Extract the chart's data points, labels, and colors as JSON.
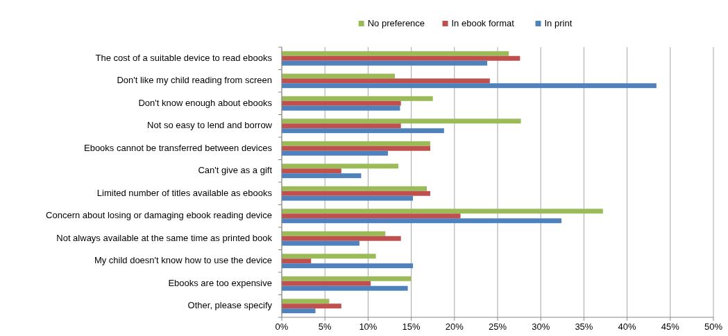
{
  "chart_data": {
    "type": "bar",
    "orientation": "horizontal",
    "categories": [
      "The cost of a suitable device to read ebooks",
      "Don't like my child reading from screen",
      "Don't know enough about ebooks",
      "Not so easy to lend and borrow",
      "Ebooks cannot be transferred between devices",
      "Can't give as a gift",
      "Limited number of titles available as ebooks",
      "Concern about losing or damaging ebook reading device",
      "Not always available at the same time as printed book",
      "My child doesn't know how to use the device",
      "Ebooks are too expensive",
      "Other, please specify"
    ],
    "series": [
      {
        "name": "No preference",
        "color": "#9bbb59",
        "values": [
          26.3,
          13.1,
          17.5,
          27.7,
          17.2,
          13.5,
          16.8,
          37.2,
          12.0,
          10.9,
          15.0,
          5.5
        ]
      },
      {
        "name": "In ebook format",
        "color": "#c0504d",
        "values": [
          27.6,
          24.1,
          13.8,
          13.8,
          17.2,
          6.9,
          17.2,
          20.7,
          13.8,
          3.4,
          10.3,
          6.9
        ]
      },
      {
        "name": "In print",
        "color": "#4f81bd",
        "values": [
          23.8,
          43.4,
          13.7,
          18.8,
          12.3,
          9.2,
          15.2,
          32.4,
          9.0,
          15.2,
          14.6,
          3.9
        ]
      }
    ],
    "xlim": [
      0,
      50
    ],
    "xticks": [
      {
        "value": 0,
        "label": "0%"
      },
      {
        "value": 5,
        "label": "5%"
      },
      {
        "value": 10,
        "label": "10%"
      },
      {
        "value": 15,
        "label": "15%"
      },
      {
        "value": 20,
        "label": "20%"
      },
      {
        "value": 25,
        "label": "25%"
      },
      {
        "value": 30,
        "label": "30%"
      },
      {
        "value": 35,
        "label": "35%"
      },
      {
        "value": 40,
        "label": "40%"
      },
      {
        "value": 45,
        "label": "45%"
      },
      {
        "value": 50,
        "label": "50%"
      }
    ],
    "grid": "x",
    "legend": "top"
  }
}
